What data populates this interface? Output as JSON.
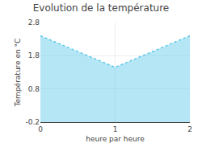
{
  "chart_data": {
    "type": "area",
    "title": "Evolution de la température",
    "xlabel": "heure par heure",
    "ylabel": "Température en °C",
    "x": [
      0,
      1,
      2
    ],
    "values": [
      2.4,
      1.45,
      2.4
    ],
    "color": "#5bc8e8",
    "line_style": "dotted",
    "xlim": [
      0,
      2
    ],
    "xticks": [
      0,
      1,
      2
    ],
    "ylim": [
      -0.2,
      2.8
    ],
    "yticks": [
      -0.2,
      0.8,
      1.8,
      2.8
    ],
    "grid": true
  }
}
